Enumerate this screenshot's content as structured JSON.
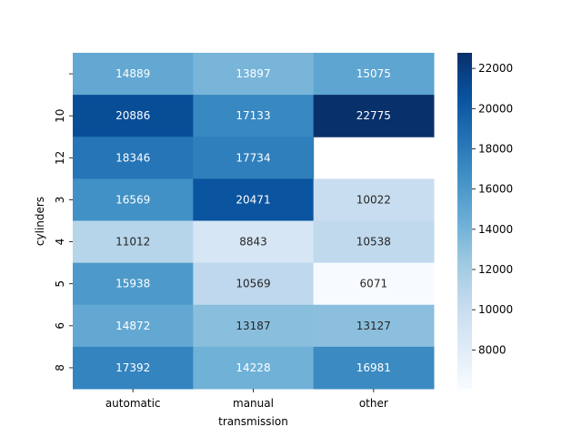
{
  "chart_data": {
    "type": "heatmap",
    "title": "",
    "xlabel": "transmission",
    "ylabel": "cylinders",
    "x_categories": [
      "automatic",
      "manual",
      "other"
    ],
    "y_categories": [
      "",
      "10",
      "12",
      "3",
      "4",
      "5",
      "6",
      "8"
    ],
    "values": [
      [
        14889,
        13897,
        15075
      ],
      [
        20886,
        17133,
        22775
      ],
      [
        18346,
        17734,
        null
      ],
      [
        16569,
        20471,
        10022
      ],
      [
        11012,
        8843,
        10538
      ],
      [
        15938,
        10569,
        6071
      ],
      [
        14872,
        13187,
        13127
      ],
      [
        17392,
        14228,
        16981
      ]
    ],
    "value_labels": [
      [
        "14889",
        "13897",
        "15075"
      ],
      [
        "20886",
        "17133",
        "22775"
      ],
      [
        "18346",
        "17734",
        ""
      ],
      [
        "16569",
        "20471",
        "10022"
      ],
      [
        "11012",
        "8843",
        "10538"
      ],
      [
        "15938",
        "10569",
        "6071"
      ],
      [
        "14872",
        "13187",
        "13127"
      ],
      [
        "17392",
        "14228",
        "16981"
      ]
    ],
    "colorbar": {
      "colormap": "Blues",
      "vmin": 6071,
      "vmax": 22775,
      "ticks": [
        8000,
        10000,
        12000,
        14000,
        16000,
        18000,
        20000,
        22000
      ],
      "tick_labels": [
        "8000",
        "10000",
        "12000",
        "14000",
        "16000",
        "18000",
        "20000",
        "22000"
      ]
    }
  }
}
